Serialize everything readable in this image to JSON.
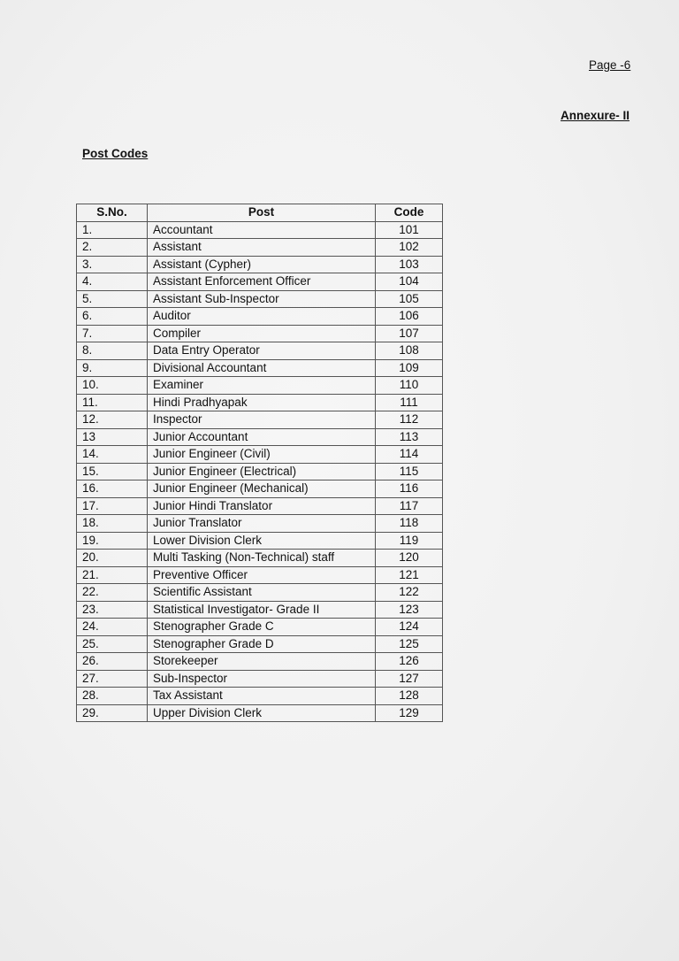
{
  "header": {
    "page_number": "Page -6",
    "annexure": "Annexure- II"
  },
  "section_title": "Post Codes",
  "table": {
    "headers": [
      "S.No.",
      "Post",
      "Code"
    ],
    "rows": [
      [
        "1.",
        "Accountant",
        "101"
      ],
      [
        "2.",
        "Assistant",
        "102"
      ],
      [
        "3.",
        "Assistant (Cypher)",
        "103"
      ],
      [
        "4.",
        "Assistant Enforcement Officer",
        "104"
      ],
      [
        "5.",
        "Assistant Sub-Inspector",
        "105"
      ],
      [
        "6.",
        "Auditor",
        "106"
      ],
      [
        "7.",
        "Compiler",
        "107"
      ],
      [
        "8.",
        "Data Entry Operator",
        "108"
      ],
      [
        "9.",
        "Divisional Accountant",
        "109"
      ],
      [
        "10.",
        "Examiner",
        "110"
      ],
      [
        "11.",
        "Hindi Pradhyapak",
        "111"
      ],
      [
        "12.",
        "Inspector",
        "112"
      ],
      [
        "13",
        "Junior Accountant",
        "113"
      ],
      [
        "14.",
        "Junior Engineer (Civil)",
        "114"
      ],
      [
        "15.",
        "Junior  Engineer (Electrical)",
        "115"
      ],
      [
        "16.",
        "Junior Engineer (Mechanical)",
        "116"
      ],
      [
        "17.",
        "Junior Hindi Translator",
        "117"
      ],
      [
        "18.",
        "Junior Translator",
        "118"
      ],
      [
        "19.",
        "Lower Division Clerk",
        "119"
      ],
      [
        "20.",
        "Multi Tasking (Non-Technical) staff",
        "120"
      ],
      [
        "21.",
        "Preventive Officer",
        "121"
      ],
      [
        "22.",
        "Scientific Assistant",
        "122"
      ],
      [
        "23.",
        "Statistical Investigator- Grade II",
        "123"
      ],
      [
        "24.",
        "Stenographer Grade C",
        "124"
      ],
      [
        "25.",
        "Stenographer Grade D",
        "125"
      ],
      [
        "26.",
        "Storekeeper",
        "126"
      ],
      [
        "27.",
        "Sub-Inspector",
        "127"
      ],
      [
        "28.",
        "Tax Assistant",
        "128"
      ],
      [
        "29.",
        "Upper Division Clerk",
        "129"
      ]
    ]
  }
}
